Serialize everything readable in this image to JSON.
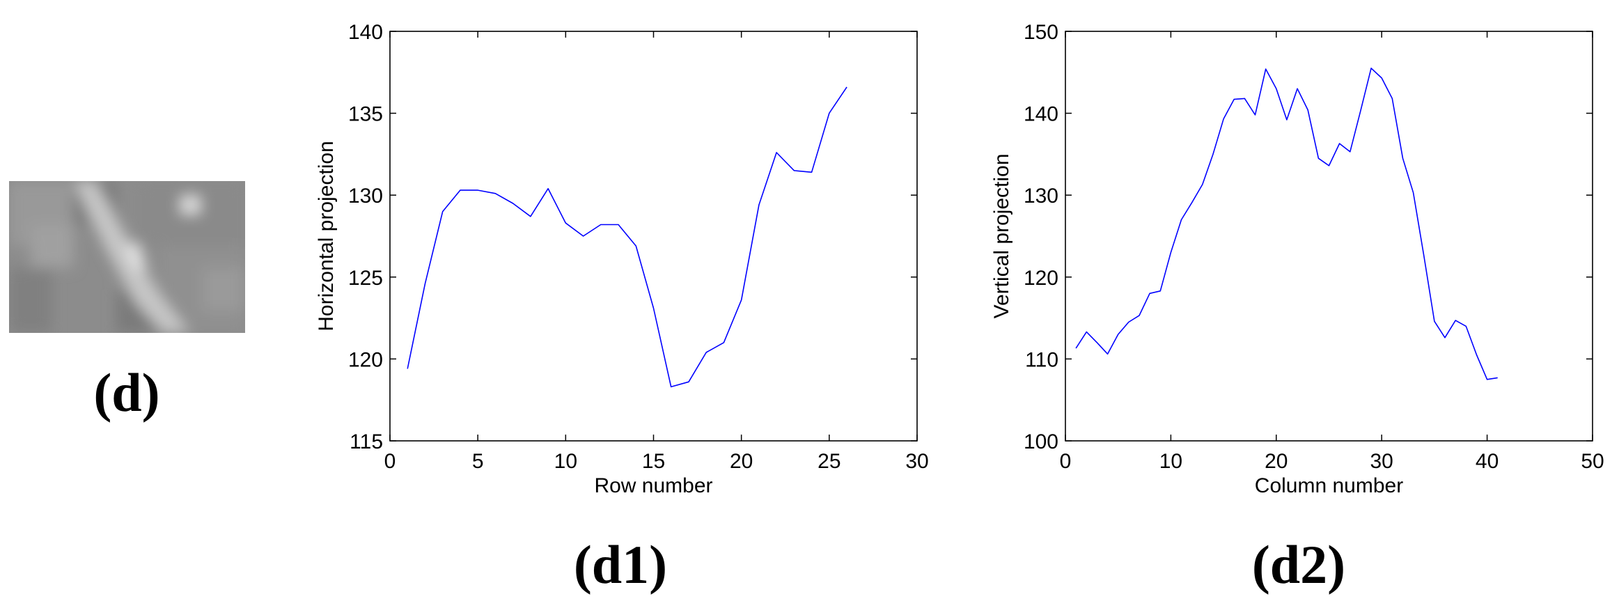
{
  "panel_labels": {
    "d": "(d)",
    "d1": "(d1)",
    "d2": "(d2)"
  },
  "chart_data": [
    {
      "type": "line",
      "xlabel": "Row number",
      "ylabel": "Horizontal projection",
      "xlim": [
        0,
        30
      ],
      "ylim": [
        115,
        140
      ],
      "xticks": [
        0,
        5,
        10,
        15,
        20,
        25,
        30
      ],
      "yticks": [
        115,
        120,
        125,
        130,
        135,
        140
      ],
      "grid": false,
      "color": "#0000ff",
      "x": [
        1,
        2,
        3,
        4,
        5,
        6,
        7,
        8,
        9,
        10,
        11,
        12,
        13,
        14,
        15,
        16,
        17,
        18,
        19,
        20,
        21,
        22,
        23,
        24,
        25,
        26
      ],
      "y": [
        119.4,
        124.6,
        129.0,
        130.3,
        130.3,
        130.1,
        129.5,
        128.7,
        130.4,
        128.3,
        127.5,
        128.2,
        128.2,
        126.9,
        123.1,
        118.3,
        118.6,
        120.4,
        121.0,
        123.6,
        129.4,
        132.6,
        131.5,
        131.4,
        135.0,
        136.6
      ]
    },
    {
      "type": "line",
      "xlabel": "Column number",
      "ylabel": "Vertical projection",
      "xlim": [
        0,
        50
      ],
      "ylim": [
        100,
        150
      ],
      "xticks": [
        0,
        10,
        20,
        30,
        40,
        50
      ],
      "yticks": [
        100,
        110,
        120,
        130,
        140,
        150
      ],
      "grid": false,
      "color": "#0000ff",
      "x": [
        1,
        2,
        3,
        4,
        5,
        6,
        7,
        8,
        9,
        10,
        11,
        12,
        13,
        14,
        15,
        16,
        17,
        18,
        19,
        20,
        21,
        22,
        23,
        24,
        25,
        26,
        27,
        28,
        29,
        30,
        31,
        32,
        33,
        34,
        35,
        36,
        37,
        38,
        39,
        40,
        41
      ],
      "y": [
        111.3,
        113.3,
        112.0,
        110.6,
        113.0,
        114.5,
        115.3,
        118.0,
        118.3,
        123.0,
        127.0,
        129.1,
        131.3,
        135.0,
        139.3,
        141.7,
        141.8,
        139.8,
        145.4,
        143.0,
        139.2,
        143.0,
        140.4,
        134.5,
        133.6,
        136.3,
        135.3,
        140.3,
        145.5,
        144.3,
        141.8,
        134.5,
        130.3,
        122.6,
        114.6,
        112.6,
        114.7,
        114.0,
        110.5,
        107.5,
        107.7
      ]
    }
  ]
}
